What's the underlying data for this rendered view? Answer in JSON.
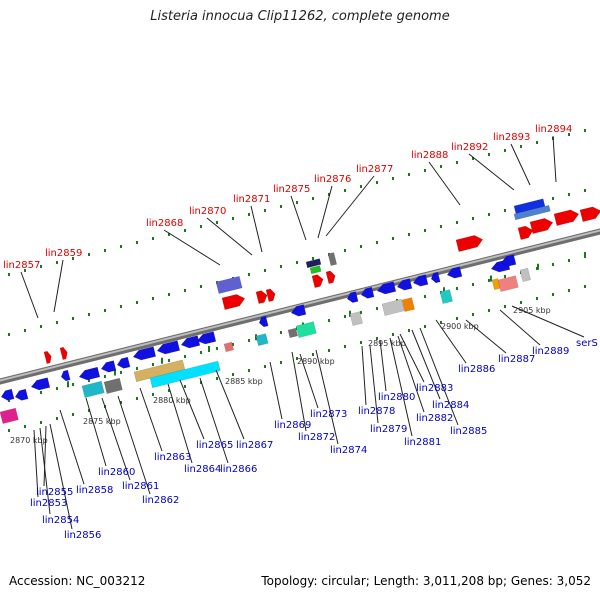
{
  "title": "Listeria innocua Clip11262, complete genome",
  "footer": {
    "accession": "Accession: NC_003212",
    "summary": "Topology: circular; Length: 3,011,208 bp; Genes: 3,052"
  },
  "colors": {
    "backbone": "#8c8c8c",
    "ticks": "#1a7a1a",
    "label_red": "#dd0000",
    "label_blue": "#0000cc",
    "leader": "#222222"
  },
  "scale_labels": [
    {
      "text": "2870 kbp"
    },
    {
      "text": "2875 kbp"
    },
    {
      "text": "2880 kbp"
    },
    {
      "text": "2885 kbp"
    },
    {
      "text": "2890 kbp"
    },
    {
      "text": "2895 kbp"
    },
    {
      "text": "2900 kbp"
    },
    {
      "text": "2905 kbp"
    }
  ],
  "top_labels": [
    {
      "text": "lin2857"
    },
    {
      "text": "lin2859"
    },
    {
      "text": "lin2868"
    },
    {
      "text": "lin2870"
    },
    {
      "text": "lin2871"
    },
    {
      "text": "lin2875"
    },
    {
      "text": "lin2876"
    },
    {
      "text": "lin2877"
    },
    {
      "text": "lin2888"
    },
    {
      "text": "lin2892"
    },
    {
      "text": "lin2893"
    },
    {
      "text": "lin2894"
    }
  ],
  "bottom_labels": [
    {
      "text": "lin2853"
    },
    {
      "text": "lin2854"
    },
    {
      "text": "lin2855"
    },
    {
      "text": "lin2856"
    },
    {
      "text": "lin2858"
    },
    {
      "text": "lin2860"
    },
    {
      "text": "lin2861"
    },
    {
      "text": "lin2862"
    },
    {
      "text": "lin2863"
    },
    {
      "text": "lin2864"
    },
    {
      "text": "lin2865"
    },
    {
      "text": "lin2866"
    },
    {
      "text": "lin2867"
    },
    {
      "text": "lin2869"
    },
    {
      "text": "lin2872"
    },
    {
      "text": "lin2873"
    },
    {
      "text": "lin2874"
    },
    {
      "text": "lin2878"
    },
    {
      "text": "lin2879"
    },
    {
      "text": "lin2880"
    },
    {
      "text": "lin2881"
    },
    {
      "text": "lin2882"
    },
    {
      "text": "lin2883"
    },
    {
      "text": "lin2884"
    },
    {
      "text": "lin2885"
    },
    {
      "text": "lin2886"
    },
    {
      "text": "lin2887"
    },
    {
      "text": "lin2889"
    },
    {
      "text": "serS"
    }
  ]
}
